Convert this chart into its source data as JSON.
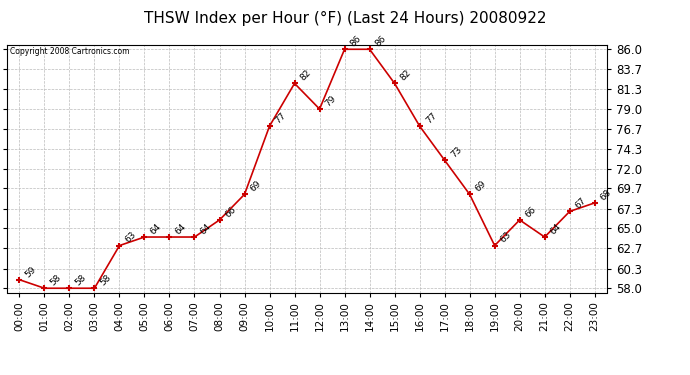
{
  "title": "THSW Index per Hour (°F) (Last 24 Hours) 20080922",
  "copyright": "Copyright 2008 Cartronics.com",
  "hours": [
    0,
    1,
    2,
    3,
    4,
    5,
    6,
    7,
    8,
    9,
    10,
    11,
    12,
    13,
    14,
    15,
    16,
    17,
    18,
    19,
    20,
    21,
    22,
    23
  ],
  "values": [
    59,
    58,
    58,
    58,
    63,
    64,
    64,
    64,
    66,
    69,
    77,
    82,
    79,
    86,
    86,
    82,
    77,
    73,
    69,
    63,
    66,
    64,
    67,
    68
  ],
  "x_labels": [
    "00:00",
    "01:00",
    "02:00",
    "03:00",
    "04:00",
    "05:00",
    "06:00",
    "07:00",
    "08:00",
    "09:00",
    "10:00",
    "11:00",
    "12:00",
    "13:00",
    "14:00",
    "15:00",
    "16:00",
    "17:00",
    "18:00",
    "19:00",
    "20:00",
    "21:00",
    "22:00",
    "23:00"
  ],
  "y_ticks": [
    58.0,
    60.3,
    62.7,
    65.0,
    67.3,
    69.7,
    72.0,
    74.3,
    76.7,
    79.0,
    81.3,
    83.7,
    86.0
  ],
  "ylim": [
    57.5,
    86.5
  ],
  "line_color": "#cc0000",
  "marker_color": "#cc0000",
  "bg_color": "#ffffff",
  "grid_color": "#bbbbbb",
  "title_fontsize": 11,
  "annotation_fontsize": 6.5,
  "tick_fontsize": 7.5,
  "ytick_fontsize": 8.5
}
